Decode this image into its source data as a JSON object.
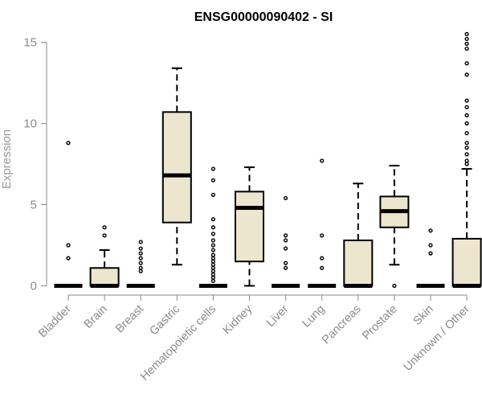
{
  "chart_data": {
    "type": "boxplot",
    "title": "ENSG00000090402 - SI",
    "xlabel": "",
    "ylabel": "Expression",
    "ylim": [
      0,
      15
    ],
    "yticks": [
      0,
      5,
      10,
      15
    ],
    "grid": false,
    "box_fill": "#ede6cf",
    "categories": [
      "Bladder",
      "Brain",
      "Breast",
      "Gastric",
      "Hematopoietic cells",
      "Kidney",
      "Liver",
      "Lung",
      "Pancreas",
      "Prostate",
      "Skin",
      "Unknown / Other"
    ],
    "boxes": [
      {
        "q1": 0,
        "median": 0,
        "q3": 0,
        "whisker_low": 0,
        "whisker_high": 0,
        "outliers": [
          8.8,
          2.5,
          1.7
        ]
      },
      {
        "q1": 0,
        "median": 0,
        "q3": 1.1,
        "whisker_low": 0,
        "whisker_high": 2.2,
        "outliers": [
          3.6,
          3.1
        ]
      },
      {
        "q1": 0,
        "median": 0,
        "q3": 0,
        "whisker_low": 0,
        "whisker_high": 0,
        "outliers": [
          2.7,
          2.3,
          2.0,
          1.7,
          1.4,
          1.1,
          0.9
        ]
      },
      {
        "q1": 3.9,
        "median": 6.8,
        "q3": 10.7,
        "whisker_low": 1.3,
        "whisker_high": 13.4,
        "outliers": []
      },
      {
        "q1": 0,
        "median": 0,
        "q3": 0,
        "whisker_low": 0,
        "whisker_high": 0,
        "outliers": [
          7.2,
          6.5,
          5.6,
          4.1,
          3.6,
          3.2,
          2.8,
          2.5,
          2.2,
          1.9,
          1.7,
          1.5,
          1.3,
          1.1,
          0.9,
          0.7,
          0.5,
          0.3
        ]
      },
      {
        "q1": 1.5,
        "median": 4.8,
        "q3": 5.8,
        "whisker_low": 0,
        "whisker_high": 7.3,
        "outliers": []
      },
      {
        "q1": 0,
        "median": 0,
        "q3": 0,
        "whisker_low": 0,
        "whisker_high": 0,
        "outliers": [
          5.4,
          3.1,
          2.8,
          2.3,
          1.4,
          1.1
        ]
      },
      {
        "q1": 0,
        "median": 0,
        "q3": 0,
        "whisker_low": 0,
        "whisker_high": 0,
        "outliers": [
          7.7,
          3.1,
          1.7,
          1.1
        ]
      },
      {
        "q1": 0,
        "median": 0,
        "q3": 2.8,
        "whisker_low": 0,
        "whisker_high": 6.3,
        "outliers": []
      },
      {
        "q1": 3.6,
        "median": 4.6,
        "q3": 5.5,
        "whisker_low": 1.3,
        "whisker_high": 7.4,
        "outliers": [
          0
        ]
      },
      {
        "q1": 0,
        "median": 0,
        "q3": 0,
        "whisker_low": 0,
        "whisker_high": 0,
        "outliers": [
          3.4,
          2.5,
          2.0
        ]
      },
      {
        "q1": 0,
        "median": 0,
        "q3": 2.9,
        "whisker_low": 0,
        "whisker_high": 7.2,
        "outliers": [
          15.5,
          15.2,
          14.9,
          14.6,
          13.7,
          13.0,
          11.4,
          11.0,
          10.5,
          10.0,
          9.4,
          8.8,
          8.5,
          8.1,
          7.7,
          7.5
        ]
      }
    ]
  }
}
